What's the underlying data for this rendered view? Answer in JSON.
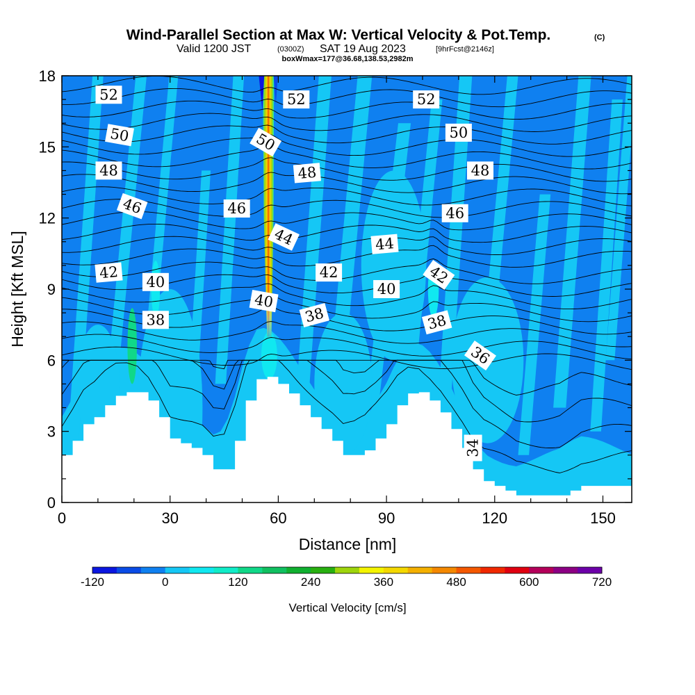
{
  "title": "Wind-Parallel Section at Max W: Vertical Velocity & Pot.Temp.",
  "title_tag": "(C)",
  "subtitle": {
    "valid_prefix": "Valid 1200 JST",
    "zulu": "(0300Z)",
    "date": "SAT 19 Aug 2023",
    "fcst": "[9hrFcst@2146z]",
    "box_info": "boxWmax=177@36.68,138.53,2982m"
  },
  "chart_data": {
    "type": "heatmap",
    "xlabel": "Distance [nm]",
    "ylabel": "Height [Kft MSL]",
    "xlim": [
      0,
      158
    ],
    "ylim": [
      0,
      18
    ],
    "x_ticks": [
      0,
      30,
      60,
      90,
      120,
      150
    ],
    "y_ticks": [
      0,
      3,
      6,
      9,
      12,
      15,
      18
    ],
    "grid": false,
    "colorbar": {
      "label": "Vertical Velocity [cm/s]",
      "min": -120,
      "max": 720,
      "tick_values": [
        -120,
        0,
        120,
        240,
        360,
        480,
        600,
        720
      ],
      "colors": [
        "#0b16e0",
        "#0a4be6",
        "#0f80f0",
        "#15c7f5",
        "#10e8f0",
        "#10ecc8",
        "#10d888",
        "#10c060",
        "#10b030",
        "#28b010",
        "#9ed50c",
        "#f4f400",
        "#f4d800",
        "#f4b000",
        "#f48800",
        "#f45800",
        "#f02800",
        "#e00010",
        "#b4005a",
        "#8c0084",
        "#6c00a8"
      ]
    },
    "contour_label_values": [
      52,
      50,
      48,
      46,
      44,
      42,
      40,
      38,
      36,
      34
    ],
    "contour_labels": [
      {
        "text": "52",
        "x": 13,
        "h": 17.2,
        "angle": 0
      },
      {
        "text": "52",
        "x": 65,
        "h": 17.0,
        "angle": 0
      },
      {
        "text": "52",
        "x": 101,
        "h": 17.0,
        "angle": 0
      },
      {
        "text": "50",
        "x": 16,
        "h": 15.5,
        "angle": 10
      },
      {
        "text": "50",
        "x": 56.5,
        "h": 15.2,
        "angle": 30
      },
      {
        "text": "50",
        "x": 110,
        "h": 15.6,
        "angle": 0
      },
      {
        "text": "48",
        "x": 13,
        "h": 14.0,
        "angle": 0
      },
      {
        "text": "48",
        "x": 68,
        "h": 13.9,
        "angle": -5
      },
      {
        "text": "48",
        "x": 116,
        "h": 14.0,
        "angle": 0
      },
      {
        "text": "46",
        "x": 19.5,
        "h": 12.5,
        "angle": 20
      },
      {
        "text": "46",
        "x": 48.5,
        "h": 12.4,
        "angle": 0
      },
      {
        "text": "46",
        "x": 109,
        "h": 12.2,
        "angle": 0
      },
      {
        "text": "44",
        "x": 61.5,
        "h": 11.2,
        "angle": 25
      },
      {
        "text": "44",
        "x": 89.5,
        "h": 10.9,
        "angle": -5
      },
      {
        "text": "42",
        "x": 13,
        "h": 9.7,
        "angle": -5
      },
      {
        "text": "42",
        "x": 74,
        "h": 9.7,
        "angle": 0
      },
      {
        "text": "42",
        "x": 104.5,
        "h": 9.6,
        "angle": 35
      },
      {
        "text": "40",
        "x": 26,
        "h": 9.3,
        "angle": 0
      },
      {
        "text": "40",
        "x": 56,
        "h": 8.5,
        "angle": 10
      },
      {
        "text": "40",
        "x": 90,
        "h": 9.0,
        "angle": 0
      },
      {
        "text": "38",
        "x": 26,
        "h": 7.7,
        "angle": 0
      },
      {
        "text": "38",
        "x": 70,
        "h": 7.9,
        "angle": -15
      },
      {
        "text": "38",
        "x": 104,
        "h": 7.6,
        "angle": -15
      },
      {
        "text": "36",
        "x": 116,
        "h": 6.2,
        "angle": 35
      },
      {
        "text": "34",
        "x": 114,
        "h": 2.3,
        "angle": -90
      }
    ],
    "terrain_profile": [
      {
        "x": 0,
        "h": 2.0
      },
      {
        "x": 3,
        "h": 2.6
      },
      {
        "x": 6,
        "h": 3.3
      },
      {
        "x": 9,
        "h": 3.6
      },
      {
        "x": 12,
        "h": 4.1
      },
      {
        "x": 15,
        "h": 4.5
      },
      {
        "x": 18,
        "h": 4.65
      },
      {
        "x": 21,
        "h": 4.65
      },
      {
        "x": 24,
        "h": 4.3
      },
      {
        "x": 27,
        "h": 3.6
      },
      {
        "x": 30,
        "h": 2.7
      },
      {
        "x": 33,
        "h": 2.5
      },
      {
        "x": 36,
        "h": 2.3
      },
      {
        "x": 39,
        "h": 2.0
      },
      {
        "x": 42,
        "h": 1.4
      },
      {
        "x": 45,
        "h": 1.4
      },
      {
        "x": 48,
        "h": 2.6
      },
      {
        "x": 51,
        "h": 4.3
      },
      {
        "x": 54,
        "h": 5.2
      },
      {
        "x": 57,
        "h": 5.3
      },
      {
        "x": 60,
        "h": 5.0
      },
      {
        "x": 63,
        "h": 4.6
      },
      {
        "x": 66,
        "h": 4.1
      },
      {
        "x": 69,
        "h": 3.6
      },
      {
        "x": 72,
        "h": 3.1
      },
      {
        "x": 75,
        "h": 2.6
      },
      {
        "x": 78,
        "h": 2.0
      },
      {
        "x": 81,
        "h": 2.0
      },
      {
        "x": 84,
        "h": 2.2
      },
      {
        "x": 87,
        "h": 2.7
      },
      {
        "x": 90,
        "h": 3.3
      },
      {
        "x": 93,
        "h": 4.1
      },
      {
        "x": 96,
        "h": 4.6
      },
      {
        "x": 99,
        "h": 4.65
      },
      {
        "x": 102,
        "h": 4.3
      },
      {
        "x": 105,
        "h": 3.8
      },
      {
        "x": 108,
        "h": 3.1
      },
      {
        "x": 111,
        "h": 2.3
      },
      {
        "x": 114,
        "h": 1.4
      },
      {
        "x": 117,
        "h": 0.9
      },
      {
        "x": 120,
        "h": 0.7
      },
      {
        "x": 123,
        "h": 0.5
      },
      {
        "x": 126,
        "h": 0.3
      },
      {
        "x": 129,
        "h": 0.3
      },
      {
        "x": 132,
        "h": 0.3
      },
      {
        "x": 135,
        "h": 0.3
      },
      {
        "x": 138,
        "h": 0.3
      },
      {
        "x": 141,
        "h": 0.5
      },
      {
        "x": 144,
        "h": 0.7
      },
      {
        "x": 147,
        "h": 0.7
      },
      {
        "x": 150,
        "h": 0.7
      },
      {
        "x": 153,
        "h": 0.7
      },
      {
        "x": 156,
        "h": 0.7
      },
      {
        "x": 158,
        "h": 0.7
      }
    ],
    "vertical_velocity_features": [
      {
        "kind": "updraft_core",
        "x": 57.5,
        "h_bottom": 7.0,
        "h_top": 18,
        "w_max_cms": 540
      },
      {
        "kind": "downdraft",
        "x": 55.5,
        "h_bottom": 16.5,
        "h_top": 18,
        "w_min_cms": -120
      },
      {
        "kind": "weak_updraft",
        "x": 19.5,
        "h_bottom": 5.0,
        "h_top": 8.2,
        "w_max_cms": 120
      }
    ]
  }
}
